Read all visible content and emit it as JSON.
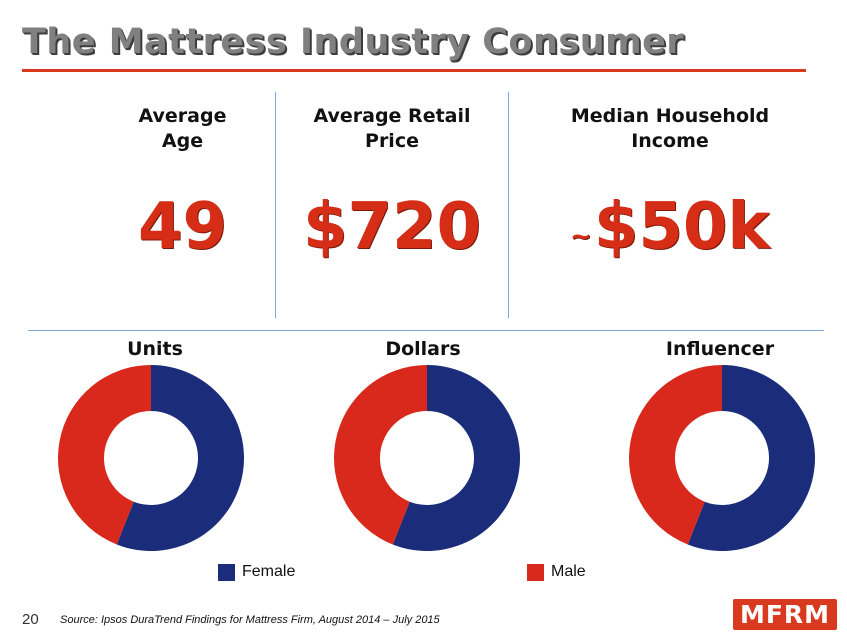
{
  "title": "The Mattress Industry Consumer",
  "stats": [
    {
      "label": "Average\nAge",
      "value": "49"
    },
    {
      "label": "Average Retail\nPrice",
      "value": "$720"
    },
    {
      "label": "Median Household\nIncome",
      "prefix": "~",
      "value": "$50k"
    }
  ],
  "colors": {
    "female": "#1b2d7a",
    "male": "#d8291c",
    "accent": "#d9391f"
  },
  "chart_data": [
    {
      "type": "pie",
      "title": "Units",
      "categories": [
        "Female",
        "Male"
      ],
      "values": [
        56,
        44
      ]
    },
    {
      "type": "pie",
      "title": "Dollars",
      "categories": [
        "Female",
        "Male"
      ],
      "values": [
        56,
        44
      ]
    },
    {
      "type": "pie",
      "title": "Influencer",
      "categories": [
        "Female",
        "Male"
      ],
      "values": [
        56,
        44
      ]
    }
  ],
  "legend": [
    {
      "label": "Female"
    },
    {
      "label": "Male"
    }
  ],
  "footer": {
    "page_number": "20",
    "source": "Source: Ipsos DuraTrend Findings for Mattress Firm, August 2014 – July 2015",
    "logo": "MFRM"
  }
}
